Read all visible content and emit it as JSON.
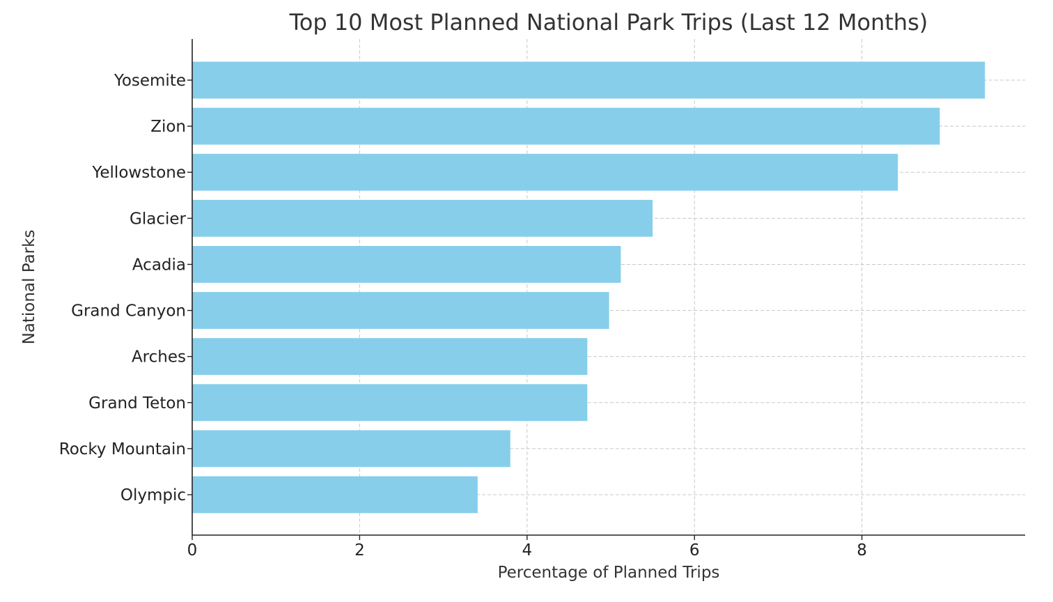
{
  "chart_data": {
    "type": "bar",
    "orientation": "horizontal",
    "title": "Top 10 Most Planned National Park Trips (Last 12 Months)",
    "xlabel": "Percentage of Planned Trips",
    "ylabel": "National Parks",
    "categories": [
      "Yosemite",
      "Zion",
      "Yellowstone",
      "Glacier",
      "Acadia",
      "Grand Canyon",
      "Arches",
      "Grand Teton",
      "Rocky Mountain",
      "Olympic"
    ],
    "values": [
      9.47,
      8.93,
      8.43,
      5.5,
      5.12,
      4.98,
      4.72,
      4.72,
      3.8,
      3.41
    ],
    "xlim": [
      0,
      9.95
    ],
    "xticks": [
      0,
      2,
      4,
      6,
      8
    ],
    "grid": true,
    "bar_color": "#87ceeb"
  }
}
